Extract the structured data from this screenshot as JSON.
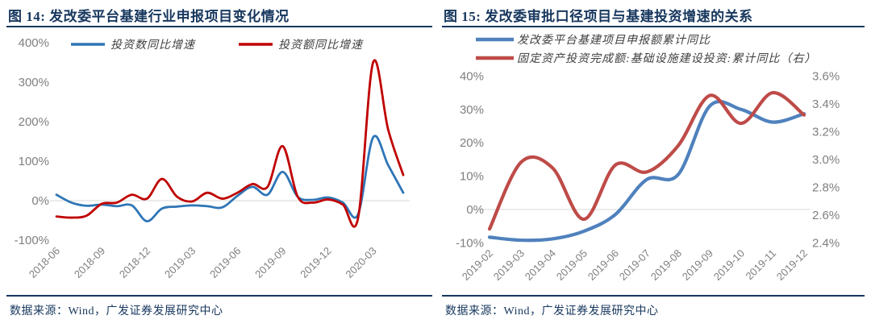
{
  "colors": {
    "navy": "#17375E",
    "axis_gray": "#7F7F7F",
    "grid_gray": "#D9D9D9",
    "legend_text": "#404040",
    "fig14_blue": "#2E75B6",
    "fig14_red": "#C00000",
    "fig15_blue": "#4F81BD",
    "fig15_red": "#BE4B48"
  },
  "panels": [
    {
      "title": "图 14: 发改委平台基建行业申报项目变化情况",
      "source": "数据来源：Wind，广发证券发展研究中心"
    },
    {
      "title": "图 15: 发改委审批口径项目与基建投资增速的关系",
      "source": "数据来源：Wind，广发证券发展研究中心"
    }
  ],
  "chart_data": [
    {
      "type": "line",
      "title": "发改委平台基建行业申报项目变化情况",
      "x": [
        "2018-06",
        "2018-07",
        "2018-08",
        "2018-09",
        "2018-10",
        "2018-11",
        "2018-12",
        "2019-01",
        "2019-02",
        "2019-03",
        "2019-04",
        "2019-05",
        "2019-06",
        "2019-07",
        "2019-08",
        "2019-09",
        "2019-10",
        "2019-11",
        "2019-12",
        "2020-01",
        "2020-02",
        "2020-03",
        "2020-04",
        "2020-05"
      ],
      "x_tick_labels": [
        "2018-06",
        "2018-09",
        "2018-12",
        "2019-03",
        "2019-06",
        "2019-09",
        "2019-12",
        "2020-03"
      ],
      "x_tick_every": 3,
      "ylim": [
        -100,
        400
      ],
      "yticks_left": [
        400,
        300,
        200,
        100,
        0,
        -100
      ],
      "y_unit": "%",
      "grid": "zero-line-only",
      "legend_position": "top-inline",
      "series": [
        {
          "name": "投资数同比增速",
          "axis": "left",
          "color": "#2E75B6",
          "values": [
            15,
            -5,
            -13,
            -10,
            -14,
            -12,
            -52,
            -20,
            -15,
            -12,
            -14,
            -17,
            12,
            35,
            15,
            73,
            10,
            2,
            8,
            -5,
            -35,
            160,
            90,
            20
          ]
        },
        {
          "name": "投资额同比增速",
          "axis": "left",
          "color": "#C00000",
          "values": [
            -40,
            -43,
            -38,
            -8,
            -5,
            15,
            5,
            55,
            10,
            -2,
            20,
            5,
            20,
            42,
            35,
            138,
            10,
            -5,
            3,
            -10,
            -45,
            350,
            180,
            65
          ]
        }
      ]
    },
    {
      "type": "line",
      "title": "发改委审批口径项目与基建投资增速的关系",
      "x": [
        "2019-02",
        "2019-03",
        "2019-04",
        "2019-05",
        "2019-06",
        "2019-07",
        "2019-08",
        "2019-09",
        "2019-10",
        "2019-11",
        "2019-12"
      ],
      "x_tick_labels": [
        "2019-02",
        "2019-03",
        "2019-04",
        "2019-05",
        "2019-06",
        "2019-07",
        "2019-08",
        "2019-09",
        "2019-10",
        "2019-11",
        "2019-12"
      ],
      "x_tick_every": 1,
      "ylim_left": [
        -10,
        40
      ],
      "yticks_left": [
        40,
        30,
        20,
        10,
        0,
        -10
      ],
      "ylim_right": [
        2.4,
        3.6
      ],
      "yticks_right": [
        3.6,
        3.4,
        3.2,
        3.0,
        2.8,
        2.6,
        2.4
      ],
      "y_unit": "%",
      "grid": "zero-line-only",
      "legend_position": "top-stacked",
      "series": [
        {
          "name": "发改委平台基建项目申报额累计同比",
          "axis": "left",
          "color": "#4F81BD",
          "values": [
            -8.3,
            -9.2,
            -8.8,
            -6.5,
            -1.5,
            9,
            10.5,
            31,
            30,
            26.2,
            28.7
          ]
        },
        {
          "name": "固定资产投资完成额:基础设施建设投资:累计同比（右）",
          "axis": "right",
          "color": "#BE4B48",
          "values": [
            2.5,
            2.98,
            2.94,
            2.57,
            2.96,
            2.91,
            3.1,
            3.46,
            3.26,
            3.48,
            3.32
          ]
        }
      ]
    }
  ]
}
